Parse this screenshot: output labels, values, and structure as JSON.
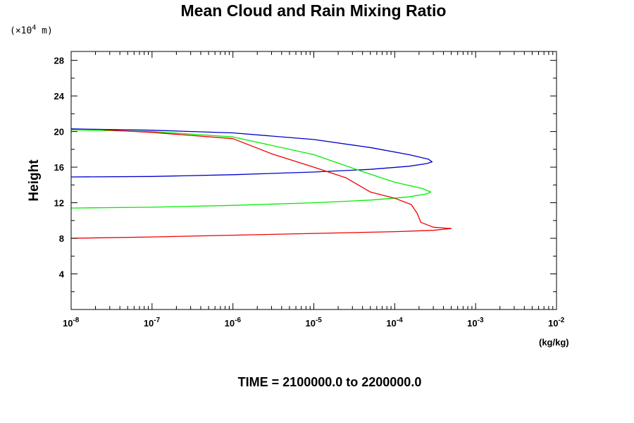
{
  "chart_data": {
    "type": "line",
    "title": "Mean Cloud and Rain Mixing Ratio",
    "ylabel": "Height",
    "y_unit_prefix": "(×10",
    "y_unit_exponent": "4",
    "y_unit_suffix": " m)",
    "xlabel": "(kg/kg)",
    "footer": "TIME = 2100000.0 to 2200000.0",
    "x_scale": "log",
    "xlim": [
      1e-08,
      0.01
    ],
    "ylim": [
      0,
      29
    ],
    "x_ticks": [
      {
        "value": 1e-08,
        "base": "10",
        "exp": "-8"
      },
      {
        "value": 1e-07,
        "base": "10",
        "exp": "-7"
      },
      {
        "value": 1e-06,
        "base": "10",
        "exp": "-6"
      },
      {
        "value": 1e-05,
        "base": "10",
        "exp": "-5"
      },
      {
        "value": 0.0001,
        "base": "10",
        "exp": "-4"
      },
      {
        "value": 0.001,
        "base": "10",
        "exp": "-3"
      },
      {
        "value": 0.01,
        "base": "10",
        "exp": "-2"
      }
    ],
    "y_ticks": [
      4,
      8,
      12,
      16,
      20,
      24,
      28
    ],
    "grid": false,
    "legend": "none",
    "series": [
      {
        "color": "#0000cc",
        "points": [
          [
            1e-08,
            14.9
          ],
          [
            1e-07,
            14.95
          ],
          [
            1e-06,
            15.15
          ],
          [
            1e-05,
            15.45
          ],
          [
            5e-05,
            15.75
          ],
          [
            0.00015,
            16.1
          ],
          [
            0.00025,
            16.4
          ],
          [
            0.00029,
            16.6
          ],
          [
            0.00026,
            16.9
          ],
          [
            0.00015,
            17.4
          ],
          [
            5e-05,
            18.2
          ],
          [
            1e-05,
            19.1
          ],
          [
            1e-06,
            19.85
          ],
          [
            1e-07,
            20.15
          ],
          [
            1e-08,
            20.3
          ]
        ]
      },
      {
        "color": "#00ee00",
        "points": [
          [
            1e-08,
            11.4
          ],
          [
            1e-07,
            11.5
          ],
          [
            1e-06,
            11.7
          ],
          [
            1e-05,
            12.0
          ],
          [
            5e-05,
            12.3
          ],
          [
            0.00015,
            12.65
          ],
          [
            0.00025,
            13.0
          ],
          [
            0.00028,
            13.2
          ],
          [
            0.00022,
            13.6
          ],
          [
            0.0001,
            14.3
          ],
          [
            4e-05,
            15.5
          ],
          [
            1e-05,
            17.4
          ],
          [
            1e-06,
            19.4
          ],
          [
            1e-07,
            20.0
          ],
          [
            1e-08,
            20.2
          ]
        ]
      },
      {
        "color": "#ee0000",
        "points": [
          [
            1e-08,
            8.0
          ],
          [
            1e-07,
            8.15
          ],
          [
            1e-06,
            8.35
          ],
          [
            1e-05,
            8.55
          ],
          [
            0.0001,
            8.75
          ],
          [
            0.0003,
            8.9
          ],
          [
            0.0005,
            9.1
          ],
          [
            0.0003,
            9.25
          ],
          [
            0.00021,
            9.8
          ],
          [
            0.00019,
            10.8
          ],
          [
            0.00016,
            11.8
          ],
          [
            0.0001,
            12.5
          ],
          [
            5e-05,
            13.2
          ],
          [
            2.5e-05,
            14.8
          ],
          [
            1e-05,
            16.0
          ],
          [
            3e-06,
            17.5
          ],
          [
            1e-06,
            19.2
          ],
          [
            1e-07,
            19.9
          ],
          [
            2.5e-08,
            20.2
          ]
        ]
      }
    ]
  }
}
